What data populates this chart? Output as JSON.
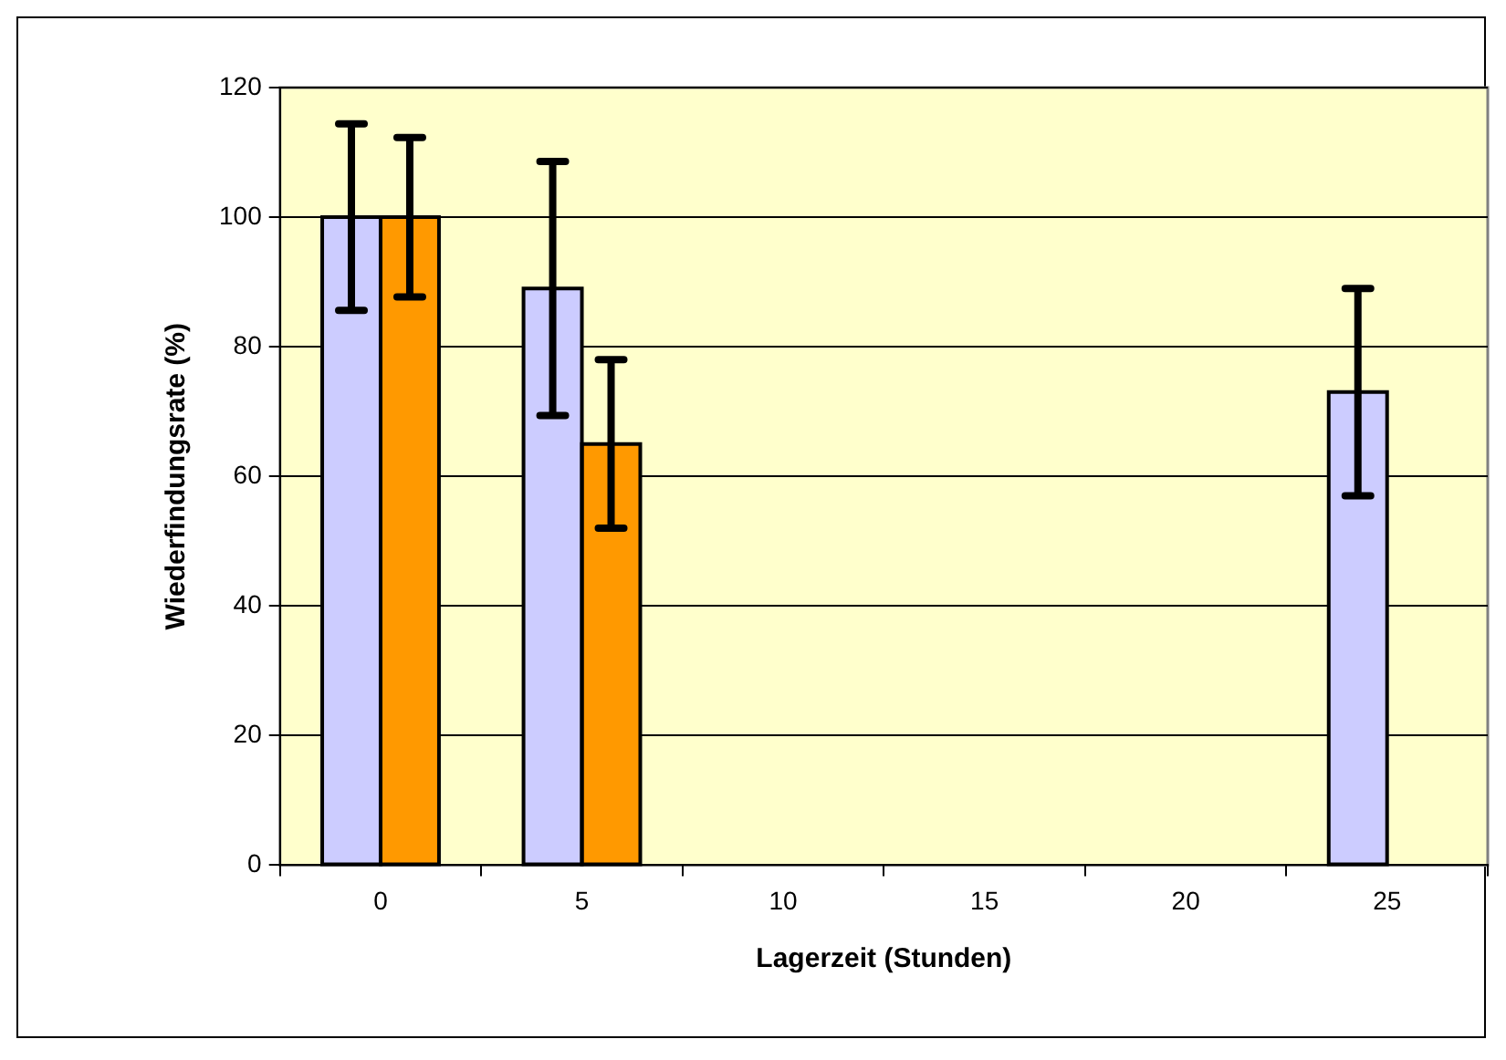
{
  "chart_data": {
    "type": "bar",
    "xlabel": "Lagerzeit (Stunden)",
    "ylabel": "Wiederfindungsrate (%)",
    "categories": [
      "0",
      "5",
      "10",
      "15",
      "20",
      "25"
    ],
    "series": [
      {
        "color": "#ccccff",
        "values": [
          100,
          89,
          null,
          null,
          null,
          73
        ],
        "errors": [
          14.4,
          19.6,
          null,
          null,
          null,
          16
        ]
      },
      {
        "color": "#ff9900",
        "values": [
          100,
          65,
          null,
          null,
          null,
          null
        ],
        "errors": [
          12.3,
          13,
          null,
          null,
          null,
          null
        ]
      }
    ],
    "ylim": [
      0,
      120
    ],
    "yticks": [
      0,
      20,
      40,
      60,
      80,
      100,
      120
    ],
    "grid": "y",
    "legend": false
  }
}
